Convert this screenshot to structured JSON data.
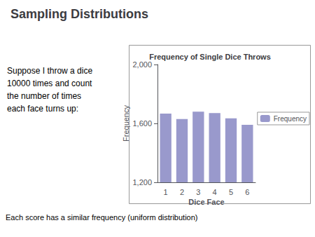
{
  "title": "Sampling Distributions",
  "annotations": [
    "Suppose I throw a dice\n10000 times and count\nthe number of times\neach face turns up:",
    "Each score has a similar frequency (uniform distribution)"
  ],
  "chart_data": {
    "type": "bar",
    "title": "Frequency of Single Dice Throws",
    "categories": [
      "1",
      "2",
      "3",
      "4",
      "5",
      "6"
    ],
    "series": [
      {
        "name": "Frequency",
        "color": "#9999CC",
        "values": [
          1667,
          1630,
          1680,
          1670,
          1635,
          1590
        ]
      }
    ],
    "xlabel": "Dice Face",
    "ylabel": "Frequency",
    "ylim": [
      1200,
      2000
    ],
    "yticks": [
      1200,
      1600,
      2000
    ],
    "grid": false,
    "legend": "right"
  }
}
